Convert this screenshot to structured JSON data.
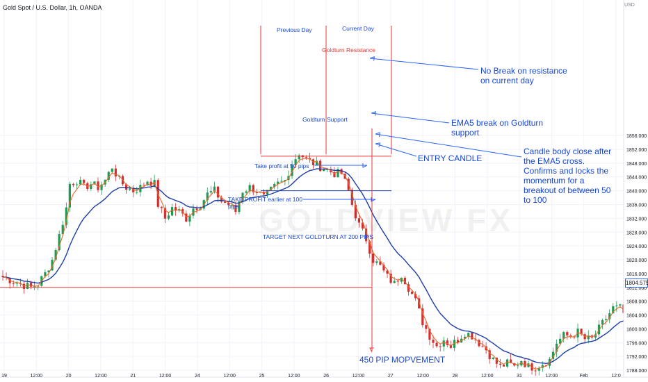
{
  "header": {
    "symbol_line": "Gold Spot / U.S. Dollar, 1h, OANDA"
  },
  "watermark": "GOLDVIEW FX",
  "chart_data": {
    "type": "candlestick",
    "currency": "USD",
    "ylim": [
      1786,
      1858
    ],
    "y_ticks": [
      1788,
      1792,
      1796,
      1800,
      1804,
      1808,
      1812,
      1816,
      1820,
      1824,
      1828,
      1832,
      1836,
      1840,
      1844,
      1848,
      1852,
      1856
    ],
    "x_ticks": [
      "19",
      "12:00",
      "20",
      "12:00",
      "21",
      "12:00",
      "24",
      "12:00",
      "25",
      "12:00",
      "26",
      "12:00",
      "27",
      "12:00",
      "28",
      "12:00",
      "31",
      "12:00",
      "Feb",
      "12:0"
    ],
    "last_price": "1804.575",
    "close_path": [
      [
        0,
        1815
      ],
      [
        5,
        1813
      ],
      [
        8,
        1812
      ],
      [
        10,
        1813
      ],
      [
        12,
        1816
      ],
      [
        14,
        1820
      ],
      [
        16,
        1827
      ],
      [
        18,
        1835
      ],
      [
        19,
        1842
      ],
      [
        21,
        1843
      ],
      [
        23,
        1841
      ],
      [
        25,
        1842
      ],
      [
        27,
        1841
      ],
      [
        29,
        1843
      ],
      [
        31,
        1847
      ],
      [
        33,
        1843
      ],
      [
        35,
        1841
      ],
      [
        37,
        1840
      ],
      [
        39,
        1841
      ],
      [
        41,
        1843
      ],
      [
        43,
        1842
      ],
      [
        44,
        1836
      ],
      [
        46,
        1832
      ],
      [
        48,
        1835
      ],
      [
        50,
        1834
      ],
      [
        52,
        1832
      ],
      [
        54,
        1835
      ],
      [
        56,
        1836
      ],
      [
        58,
        1839
      ],
      [
        60,
        1840
      ],
      [
        62,
        1837
      ],
      [
        64,
        1836
      ],
      [
        66,
        1834
      ],
      [
        68,
        1840
      ],
      [
        70,
        1841
      ],
      [
        72,
        1840
      ],
      [
        74,
        1838
      ],
      [
        76,
        1840
      ],
      [
        78,
        1842
      ],
      [
        80,
        1843
      ],
      [
        82,
        1848
      ],
      [
        84,
        1851
      ],
      [
        86,
        1849
      ],
      [
        88,
        1848
      ],
      [
        90,
        1847
      ],
      [
        92,
        1846
      ],
      [
        94,
        1845
      ],
      [
        96,
        1845
      ],
      [
        98,
        1840
      ],
      [
        99,
        1836
      ],
      [
        100,
        1833
      ],
      [
        101,
        1830
      ],
      [
        103,
        1826
      ],
      [
        105,
        1820
      ],
      [
        107,
        1818
      ],
      [
        109,
        1815
      ],
      [
        111,
        1813
      ],
      [
        113,
        1816
      ],
      [
        115,
        1812
      ],
      [
        117,
        1808
      ],
      [
        119,
        1802
      ],
      [
        121,
        1798
      ],
      [
        123,
        1795
      ],
      [
        125,
        1797
      ],
      [
        127,
        1795
      ],
      [
        129,
        1797
      ],
      [
        131,
        1799
      ],
      [
        133,
        1798
      ],
      [
        135,
        1796
      ],
      [
        137,
        1794
      ],
      [
        139,
        1791
      ],
      [
        141,
        1789
      ],
      [
        143,
        1790
      ],
      [
        145,
        1789
      ],
      [
        147,
        1791
      ],
      [
        149,
        1789
      ],
      [
        151,
        1789
      ],
      [
        153,
        1790
      ],
      [
        155,
        1791
      ],
      [
        157,
        1796
      ],
      [
        159,
        1798
      ],
      [
        161,
        1798
      ],
      [
        163,
        1799
      ],
      [
        165,
        1797
      ],
      [
        167,
        1797
      ],
      [
        169,
        1800
      ],
      [
        171,
        1803
      ],
      [
        173,
        1806
      ],
      [
        175,
        1806
      ],
      [
        176,
        1804.5
      ]
    ],
    "series": [
      {
        "name": "EMA5",
        "color": "#e8672a"
      },
      {
        "name": "",
        "color": "#1c3ca8"
      }
    ],
    "levels": [
      {
        "label": "Goldturn Resistance",
        "price": 1850,
        "color": "#e53935"
      },
      {
        "label": "Goldturn Support",
        "price": 1840,
        "color": "#1c3ca8"
      },
      {
        "label": "TARGET NEXT GOLDTURN AT 200 PIPS",
        "price": 1812,
        "color": "#e53935"
      }
    ],
    "annotations": {
      "previous_day": "Previous Day",
      "current_day": "Current Day",
      "no_break": "No Break on resistance\non current day",
      "ema5_break": "EMA5 break on Goldturn\nsupport",
      "entry": "ENTRY CANDLE",
      "candle_body": "Candle body close after\nthe EMA5 cross.\nConfirms and locks the\nmomentum for a\nbreakout of between 50\nto 100",
      "tp50": "Take profit at 50 pips",
      "tp100": "TAKE PROFIT earlier at 100\npips",
      "move": "450 PIP MOPVEMENT"
    }
  }
}
